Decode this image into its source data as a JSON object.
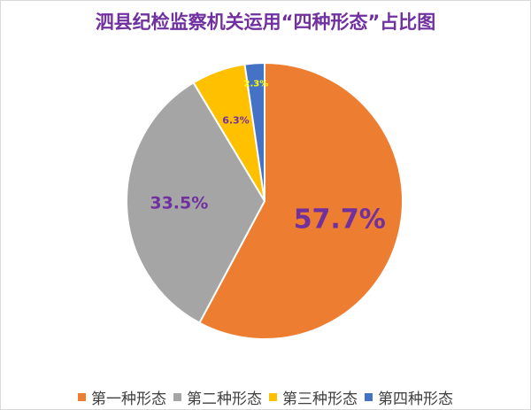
{
  "chart_data": {
    "type": "pie",
    "title": "泗县纪检监察机关运用“四种形态”占比图",
    "categories": [
      "第一种形态",
      "第二种形态",
      "第三种形态",
      "第四种形态"
    ],
    "values": [
      57.7,
      33.5,
      6.3,
      2.3
    ],
    "data_labels": [
      "57.7%",
      "33.5%",
      "6.3%",
      "2.3%"
    ],
    "colors": [
      "#ed7d31",
      "#a5a5a5",
      "#ffc000",
      "#4472c4"
    ],
    "label_colors": [
      "#7030a0",
      "#7030a0",
      "#7030a0",
      "#ffff00"
    ],
    "start_angle": "top",
    "direction": "clockwise",
    "legend_position": "bottom"
  }
}
